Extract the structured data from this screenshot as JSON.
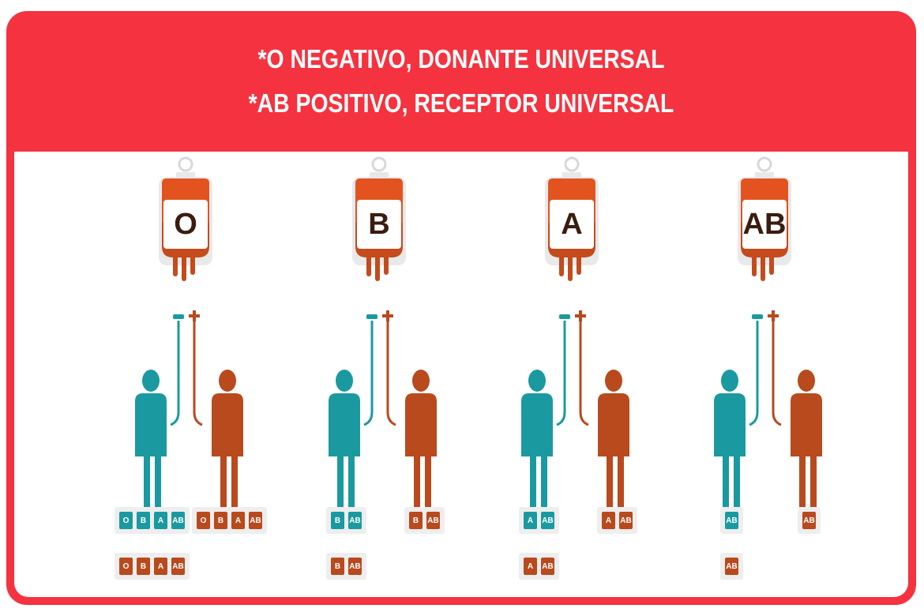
{
  "header": {
    "line1": "*O NEGATIVO, DONANTE UNIVERSAL",
    "line2": "*AB POSITIVO, RECEPTOR UNIVERSAL"
  },
  "colors": {
    "frame": "#f5323f",
    "teal": "#1a9aa0",
    "rust": "#b84a1e",
    "bag_top": "#e3531f",
    "bag_body": "#c54a1c"
  },
  "icons": {
    "minus": "minus-icon",
    "plus": "plus-icon",
    "blood_bag": "blood-bag-icon",
    "person": "person-icon"
  },
  "groups": [
    {
      "label": "O",
      "negative_receives": [
        "O"
      ],
      "positive_receives": [
        "O",
        "B",
        "A",
        "AB"
      ],
      "negative_donates": [
        "O",
        "B",
        "A",
        "AB"
      ],
      "positive_donates": [
        "O",
        "B",
        "A",
        "AB"
      ]
    },
    {
      "label": "B",
      "negative_receives": [
        "B",
        "AB"
      ],
      "positive_receives": [
        "B",
        "AB"
      ],
      "negative_donates": [
        "B",
        "AB"
      ]
    },
    {
      "label": "A",
      "negative_receives": [
        "A",
        "AB"
      ],
      "positive_receives": [
        "A",
        "AB"
      ],
      "negative_donates": [
        "A",
        "AB"
      ]
    },
    {
      "label": "AB",
      "negative_receives": [
        "AB"
      ],
      "positive_receives": [
        "AB"
      ],
      "negative_donates": [
        "AB"
      ]
    }
  ]
}
